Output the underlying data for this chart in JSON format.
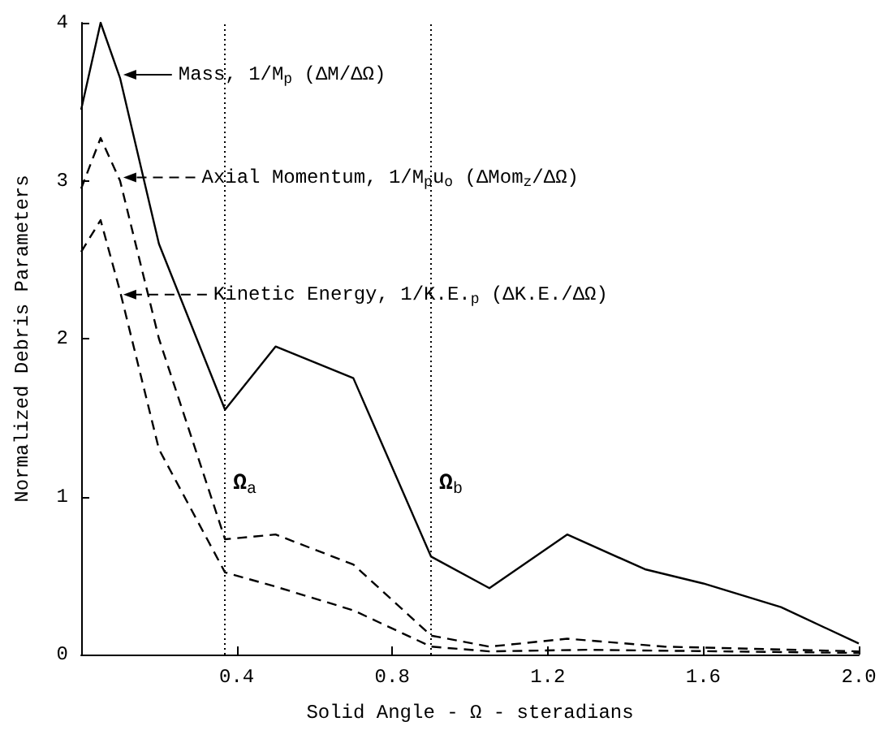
{
  "chart_data": {
    "type": "line",
    "xlabel": "Solid Angle - Ω - steradians",
    "ylabel": "Normalized Debris Parameters",
    "xlim": [
      0,
      2.0
    ],
    "xticks": [
      {
        "value": 0,
        "label": null
      },
      0.4,
      0.8,
      1.2,
      1.6,
      {
        "value": 2.0,
        "label": "2.0"
      }
    ],
    "ylim": [
      0,
      4
    ],
    "yticks": [
      0,
      1,
      2,
      3,
      4
    ],
    "grid": false,
    "legend": "top",
    "marker": "none",
    "series": [
      {
        "name": "Mass, 1/M$_{p}$ (ΔM/ΔΩ)",
        "color": "#000000",
        "line_style": "solid",
        "x": [
          0,
          0.05,
          0.1,
          0.2,
          0.37,
          0.5,
          0.7,
          0.9,
          1.05,
          1.25,
          1.45,
          1.6,
          1.8,
          2.0
        ],
        "values": [
          3.45,
          4.0,
          3.65,
          2.6,
          1.55,
          1.95,
          1.75,
          0.62,
          0.42,
          0.76,
          0.54,
          0.45,
          0.3,
          0.07
        ]
      },
      {
        "name": "Axial Momentum, 1/M$_{p}$u$_{o}$ (ΔMom$_{z}$/ΔΩ)",
        "color": "#000000",
        "line_style": "dashed",
        "x": [
          0,
          0.05,
          0.1,
          0.2,
          0.37,
          0.5,
          0.7,
          0.9,
          1.05,
          1.25,
          1.5,
          2.0
        ],
        "values": [
          2.95,
          3.27,
          3.0,
          2.0,
          0.73,
          0.76,
          0.57,
          0.12,
          0.05,
          0.1,
          0.05,
          0.02
        ]
      },
      {
        "name": "Kinetic Energy, 1/K.E.$_{p}$ (ΔK.E./ΔΩ)",
        "color": "#000000",
        "line_style": "dashed",
        "x": [
          0,
          0.05,
          0.1,
          0.2,
          0.37,
          0.5,
          0.7,
          0.9,
          1.05,
          1.3,
          2.0
        ],
        "values": [
          2.55,
          2.75,
          2.3,
          1.3,
          0.52,
          0.43,
          0.28,
          0.05,
          0.02,
          0.03,
          0.01
        ]
      }
    ],
    "ref_lines": [
      {
        "axis": "x",
        "value": 0.37,
        "label": "Ω$_{a}$",
        "line_style": "dotted",
        "color": "#000000"
      },
      {
        "axis": "x",
        "value": 0.9,
        "label": "Ω$_{b}$",
        "line_style": "dotted",
        "color": "#000000"
      }
    ]
  }
}
